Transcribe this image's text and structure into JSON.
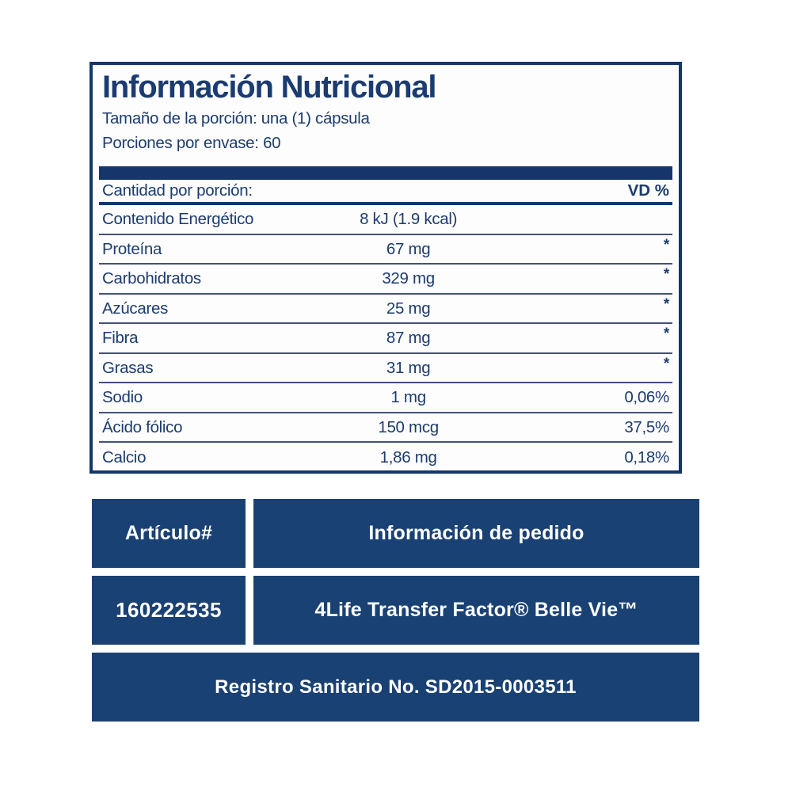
{
  "colors": {
    "navy_border": "#14366B",
    "navy_block": "#1A4173",
    "text_navy": "#1C3C6F",
    "row_divider": "#44507A",
    "background": "#FFFFFF",
    "block_text": "#FFFFFF"
  },
  "panel": {
    "title": "Información Nutricional",
    "serving_size": "Tamaño de la porción: una (1) cápsula",
    "servings_per_container": "Porciones por envase: 60",
    "amount_header": "Cantidad por porción:",
    "dv_header": "VD %",
    "rows": [
      {
        "name": "Contenido Energético",
        "amount": "8 kJ (1.9 kcal)",
        "dv": ""
      },
      {
        "name": "Proteína",
        "amount": "67 mg",
        "dv": "*"
      },
      {
        "name": "Carbohidratos",
        "amount": "329 mg",
        "dv": "*"
      },
      {
        "name": "Azúcares",
        "amount": "25 mg",
        "dv": "*"
      },
      {
        "name": "Fibra",
        "amount": "87 mg",
        "dv": "*"
      },
      {
        "name": "Grasas",
        "amount": "31 mg",
        "dv": "*"
      },
      {
        "name": "Sodio",
        "amount": "1 mg",
        "dv": "0,06%"
      },
      {
        "name": "Ácido fólico",
        "amount": "150 mcg",
        "dv": "37,5%"
      },
      {
        "name": "Calcio",
        "amount": "1,86 mg",
        "dv": "0,18%"
      }
    ]
  },
  "order": {
    "article_header": "Artículo#",
    "info_header": "Información de pedido",
    "article_number": "160222535",
    "product_name": "4Life Transfer Factor® Belle Vie™",
    "registration": "Registro Sanitario No. SD2015-0003511"
  }
}
